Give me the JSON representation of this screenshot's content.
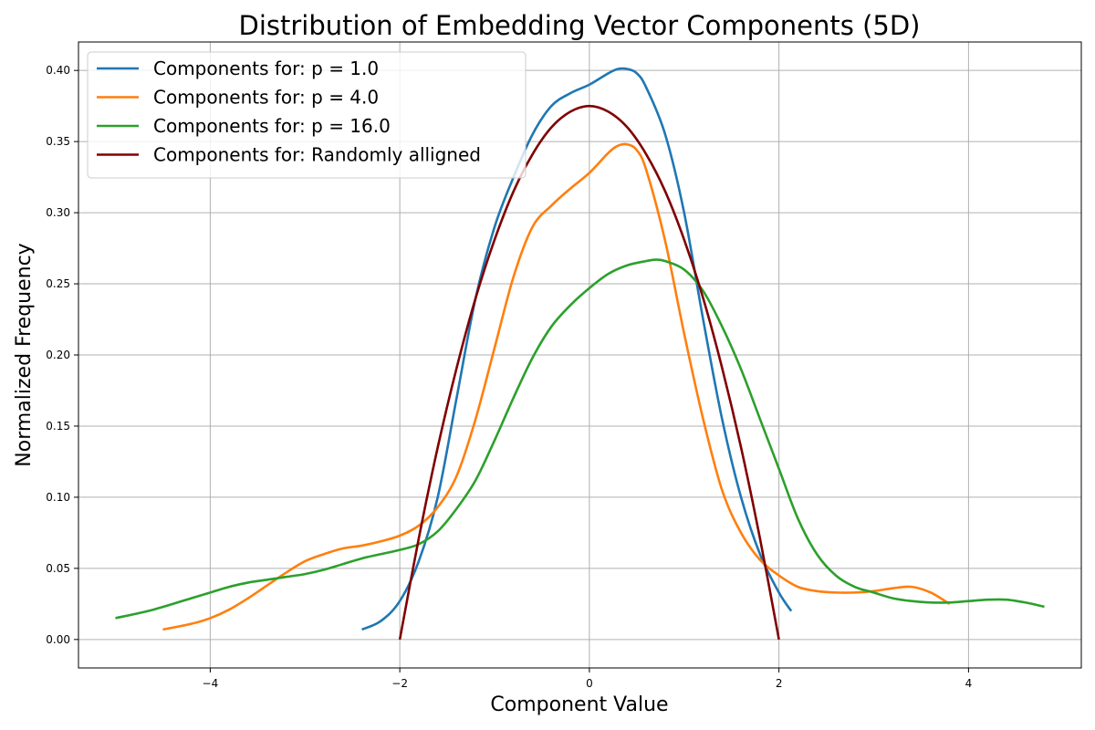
{
  "chart_data": {
    "type": "line",
    "title": "Distribution of Embedding Vector Components (5D)",
    "xlabel": "Component Value",
    "ylabel": "Normalized Frequency",
    "xlim": [
      -5.39,
      5.19
    ],
    "ylim": [
      -0.02,
      0.42
    ],
    "xticks": [
      -4,
      -2,
      0,
      2,
      4
    ],
    "xtick_labels": [
      "−4",
      "−2",
      "0",
      "2",
      "4"
    ],
    "yticks": [
      0.0,
      0.05,
      0.1,
      0.15,
      0.2,
      0.25,
      0.3,
      0.35,
      0.4
    ],
    "ytick_labels": [
      "0.00",
      "0.05",
      "0.10",
      "0.15",
      "0.20",
      "0.25",
      "0.30",
      "0.35",
      "0.40"
    ],
    "grid": true,
    "legend_position": "top-left",
    "series": [
      {
        "name": "Components for: p = 1.0",
        "color": "#1f77b4",
        "x": [
          -2.4,
          -2.2,
          -2.0,
          -1.8,
          -1.6,
          -1.4,
          -1.2,
          -1.0,
          -0.8,
          -0.6,
          -0.4,
          -0.2,
          0.0,
          0.2,
          0.3,
          0.4,
          0.5,
          0.6,
          0.8,
          1.0,
          1.2,
          1.4,
          1.6,
          1.8,
          2.0,
          2.13
        ],
        "y": [
          0.007,
          0.013,
          0.027,
          0.055,
          0.1,
          0.17,
          0.24,
          0.29,
          0.325,
          0.355,
          0.375,
          0.384,
          0.39,
          0.398,
          0.401,
          0.401,
          0.398,
          0.388,
          0.355,
          0.3,
          0.225,
          0.155,
          0.1,
          0.06,
          0.033,
          0.02
        ]
      },
      {
        "name": "Components for: p = 4.0",
        "color": "#ff7f0e",
        "x": [
          -4.5,
          -4.2,
          -4.0,
          -3.8,
          -3.6,
          -3.4,
          -3.2,
          -3.0,
          -2.8,
          -2.6,
          -2.4,
          -2.2,
          -2.0,
          -1.8,
          -1.6,
          -1.4,
          -1.2,
          -1.0,
          -0.8,
          -0.6,
          -0.4,
          -0.2,
          0.0,
          0.2,
          0.3,
          0.4,
          0.5,
          0.6,
          0.8,
          1.0,
          1.2,
          1.4,
          1.6,
          1.8,
          2.0,
          2.2,
          2.4,
          2.6,
          2.8,
          3.0,
          3.2,
          3.4,
          3.6,
          3.8
        ],
        "y": [
          0.007,
          0.011,
          0.015,
          0.021,
          0.029,
          0.038,
          0.047,
          0.055,
          0.06,
          0.064,
          0.066,
          0.069,
          0.073,
          0.08,
          0.093,
          0.115,
          0.155,
          0.205,
          0.255,
          0.29,
          0.305,
          0.317,
          0.328,
          0.342,
          0.347,
          0.348,
          0.344,
          0.33,
          0.28,
          0.215,
          0.155,
          0.105,
          0.075,
          0.056,
          0.045,
          0.037,
          0.034,
          0.033,
          0.033,
          0.034,
          0.036,
          0.037,
          0.033,
          0.025
        ]
      },
      {
        "name": "Components for: p = 16.0",
        "color": "#2ca02c",
        "x": [
          -5.0,
          -4.6,
          -4.2,
          -4.0,
          -3.8,
          -3.6,
          -3.4,
          -3.2,
          -3.0,
          -2.8,
          -2.6,
          -2.4,
          -2.2,
          -2.0,
          -1.8,
          -1.6,
          -1.4,
          -1.2,
          -1.0,
          -0.8,
          -0.6,
          -0.4,
          -0.2,
          0.0,
          0.2,
          0.4,
          0.6,
          0.7,
          0.8,
          1.0,
          1.2,
          1.4,
          1.6,
          1.8,
          2.0,
          2.2,
          2.4,
          2.6,
          2.8,
          3.0,
          3.2,
          3.4,
          3.6,
          3.8,
          4.0,
          4.2,
          4.4,
          4.6,
          4.8
        ],
        "y": [
          0.015,
          0.021,
          0.029,
          0.033,
          0.037,
          0.04,
          0.042,
          0.044,
          0.046,
          0.049,
          0.053,
          0.057,
          0.06,
          0.063,
          0.067,
          0.076,
          0.092,
          0.112,
          0.14,
          0.17,
          0.198,
          0.22,
          0.235,
          0.247,
          0.257,
          0.263,
          0.266,
          0.267,
          0.266,
          0.26,
          0.245,
          0.22,
          0.19,
          0.155,
          0.12,
          0.085,
          0.06,
          0.045,
          0.037,
          0.033,
          0.029,
          0.027,
          0.026,
          0.026,
          0.027,
          0.028,
          0.028,
          0.026,
          0.023
        ]
      },
      {
        "name": "Components for: Randomly alligned",
        "color": "#800000",
        "x": [
          -2.0,
          -1.8,
          -1.6,
          -1.4,
          -1.2,
          -1.0,
          -0.8,
          -0.6,
          -0.4,
          -0.2,
          0.0,
          0.2,
          0.4,
          0.6,
          0.8,
          1.0,
          1.2,
          1.4,
          1.6,
          1.8,
          2.0
        ],
        "y": [
          0.0,
          0.071,
          0.135,
          0.191,
          0.24,
          0.281,
          0.315,
          0.341,
          0.36,
          0.371,
          0.375,
          0.371,
          0.36,
          0.341,
          0.315,
          0.281,
          0.24,
          0.191,
          0.135,
          0.071,
          0.0
        ]
      }
    ]
  }
}
